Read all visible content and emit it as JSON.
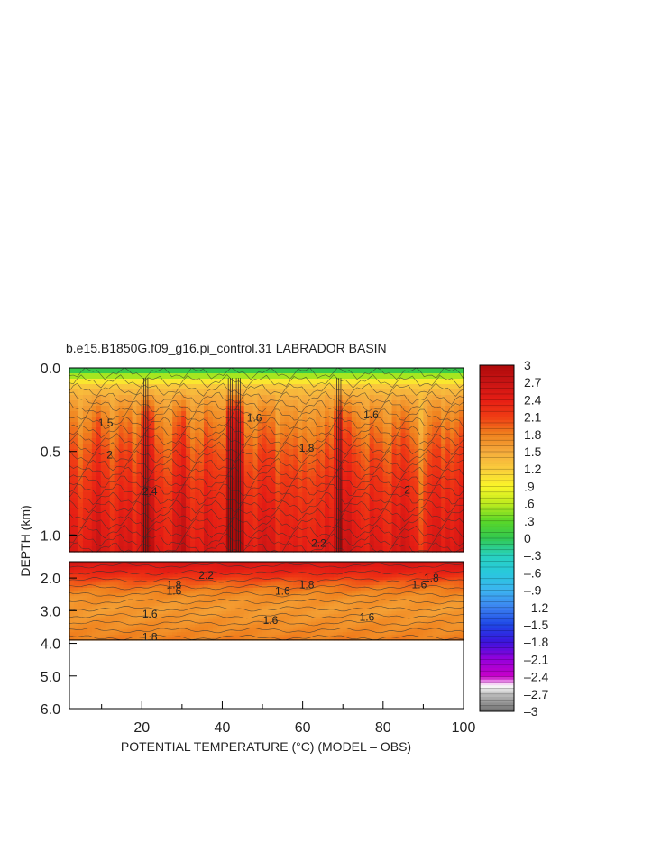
{
  "chart_data": {
    "type": "heatmap",
    "title": "b.e15.B1850G.f09_g16.pi_control.31 LABRADOR BASIN",
    "xlabel": "POTENTIAL TEMPERATURE (°C) (MODEL – OBS)",
    "ylabel": "DEPTH (km)",
    "xlim": [
      2,
      100
    ],
    "x_ticks": [
      20,
      40,
      60,
      80,
      100
    ],
    "y_upper_ticks": [
      {
        "value": 0.0,
        "label": "0.0"
      },
      {
        "value": 0.5,
        "label": "0.5"
      },
      {
        "value": 1.0,
        "label": "1.0"
      }
    ],
    "y_lower_ticks": [
      {
        "value": 2.0,
        "label": "2.0"
      },
      {
        "value": 3.0,
        "label": "3.0"
      },
      {
        "value": 4.0,
        "label": "4.0"
      },
      {
        "value": 5.0,
        "label": "5.0"
      },
      {
        "value": 6.0,
        "label": "6.0"
      }
    ],
    "upper_depth_range": [
      0.0,
      1.1
    ],
    "lower_depth_range": [
      1.5,
      6.0
    ],
    "data_bottom_depth": 3.9,
    "colorbar": {
      "range": [
        -3,
        3
      ],
      "labels": [
        "3",
        "2.7",
        "2.4",
        "2.1",
        "1.8",
        "1.5",
        "1.2",
        ".9",
        ".6",
        ".3",
        "0",
        "–.3",
        "–.6",
        "–.9",
        "–1.2",
        "–1.5",
        "–1.8",
        "–2.1",
        "–2.4",
        "–2.7",
        "–3"
      ]
    },
    "contour_labels": [
      {
        "text": "1.6",
        "x": 48,
        "depth": 0.3
      },
      {
        "text": "1.6",
        "x": 77,
        "depth": 0.28
      },
      {
        "text": "1.8",
        "x": 61,
        "depth": 0.48
      },
      {
        "text": "2",
        "x": 86,
        "depth": 0.73
      },
      {
        "text": "2.2",
        "x": 64,
        "depth": 1.05
      },
      {
        "text": "2.4",
        "x": 22,
        "depth": 0.74
      },
      {
        "text": "2",
        "x": 12,
        "depth": 0.52
      },
      {
        "text": "1.5",
        "x": 11,
        "depth": 0.33
      },
      {
        "text": "1.6",
        "x": 28,
        "depth": 2.4
      },
      {
        "text": "1.8",
        "x": 28,
        "depth": 2.2
      },
      {
        "text": "2.2",
        "x": 36,
        "depth": 1.92
      },
      {
        "text": "1.6",
        "x": 55,
        "depth": 2.4
      },
      {
        "text": "1.8",
        "x": 61,
        "depth": 2.2
      },
      {
        "text": "1.6",
        "x": 89,
        "depth": 2.2
      },
      {
        "text": "1.8",
        "x": 92,
        "depth": 2.0
      },
      {
        "text": "1.6",
        "x": 22,
        "depth": 3.1
      },
      {
        "text": "1.6",
        "x": 52,
        "depth": 3.3
      },
      {
        "text": "1.6",
        "x": 76,
        "depth": 3.2
      },
      {
        "text": "1.8",
        "x": 22,
        "depth": 3.8
      }
    ],
    "upper_profile": [
      {
        "depth": 0.0,
        "value": -0.2
      },
      {
        "depth": 0.04,
        "value": 0.4
      },
      {
        "depth": 0.08,
        "value": 1.0
      },
      {
        "depth": 0.12,
        "value": 1.3
      },
      {
        "depth": 0.18,
        "value": 1.5
      },
      {
        "depth": 0.25,
        "value": 1.65
      },
      {
        "depth": 0.35,
        "value": 1.8
      },
      {
        "depth": 0.5,
        "value": 2.0
      },
      {
        "depth": 0.7,
        "value": 2.2
      },
      {
        "depth": 0.9,
        "value": 2.35
      },
      {
        "depth": 1.1,
        "value": 2.5
      }
    ],
    "lower_profile": [
      {
        "depth": 1.5,
        "value": 2.6
      },
      {
        "depth": 1.75,
        "value": 2.4
      },
      {
        "depth": 1.95,
        "value": 2.2
      },
      {
        "depth": 2.1,
        "value": 2.0
      },
      {
        "depth": 2.3,
        "value": 1.85
      },
      {
        "depth": 2.6,
        "value": 1.7
      },
      {
        "depth": 3.0,
        "value": 1.62
      },
      {
        "depth": 3.5,
        "value": 1.72
      },
      {
        "depth": 3.9,
        "value": 1.8
      }
    ],
    "anomaly_columns": [
      {
        "x": 10,
        "value": 2.2
      },
      {
        "x": 21,
        "value": 3.0
      },
      {
        "x": 30,
        "value": 2.4
      },
      {
        "x": 42,
        "value": 3.0
      },
      {
        "x": 44,
        "value": 3.0
      },
      {
        "x": 52,
        "value": 2.1
      },
      {
        "x": 58,
        "value": 1.7
      },
      {
        "x": 64,
        "value": 1.7
      },
      {
        "x": 69,
        "value": 3.0
      },
      {
        "x": 73,
        "value": 2.1
      },
      {
        "x": 80,
        "value": 1.8
      },
      {
        "x": 83,
        "value": 2.2
      },
      {
        "x": 90,
        "value": 1.6
      },
      {
        "x": 96,
        "value": 2.2
      }
    ]
  }
}
